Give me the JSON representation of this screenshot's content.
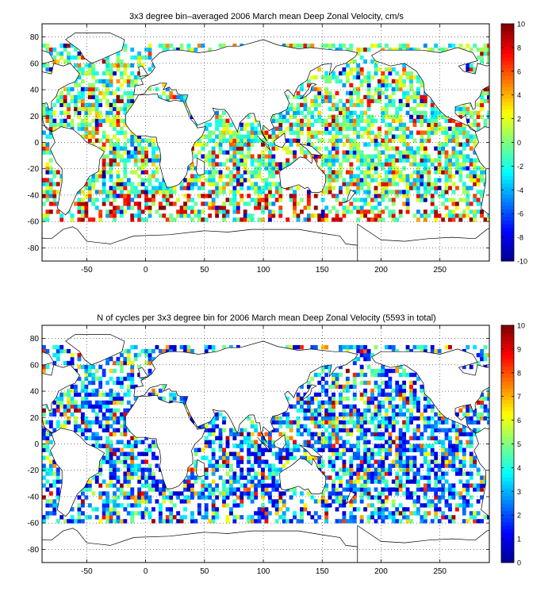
{
  "figure": {
    "panel_top_title": "3x3 degree bin–averaged 2006 March mean Deep Zonal Velocity, cm/s",
    "panel_bottom_title": "N of cycles per 3x3 degree bin for 2006 March mean Deep Zonal Velocity (5593 in total)"
  },
  "chart_data": [
    {
      "type": "heatmap",
      "title": "3x3 degree bin–averaged 2006 March mean Deep Zonal Velocity, cm/s",
      "bin_size_deg": 3,
      "xlim": [
        -88,
        292
      ],
      "ylim": [
        -90,
        90
      ],
      "x_ticks": [
        -50,
        0,
        50,
        100,
        150,
        200,
        250
      ],
      "y_ticks": [
        -80,
        -60,
        -40,
        -20,
        0,
        20,
        40,
        60,
        80
      ],
      "grid": true,
      "grid_style": "dotted",
      "colormap": "jet",
      "clim": [
        -10,
        10
      ],
      "colorbar_ticks": [
        -10,
        -8,
        -6,
        -4,
        -2,
        0,
        2,
        4,
        6,
        8,
        10
      ],
      "colorbar_position": "right",
      "units": "cm/s",
      "coverage_lat": [
        -60,
        75
      ]
    },
    {
      "type": "heatmap",
      "title": "N of cycles per 3x3 degree bin for 2006 March mean Deep Zonal Velocity (5593 in total)",
      "bin_size_deg": 3,
      "total_cycles": 5593,
      "xlim": [
        -88,
        292
      ],
      "ylim": [
        -90,
        90
      ],
      "x_ticks": [
        -50,
        0,
        50,
        100,
        150,
        200,
        250
      ],
      "y_ticks": [
        -80,
        -60,
        -40,
        -20,
        0,
        20,
        40,
        60,
        80
      ],
      "grid": true,
      "grid_style": "dotted",
      "colormap": "jet",
      "clim": [
        0,
        10
      ],
      "colorbar_ticks": [
        0,
        1,
        2,
        3,
        4,
        5,
        6,
        7,
        8,
        9,
        10
      ],
      "colorbar_position": "right",
      "coverage_lat": [
        -60,
        75
      ]
    }
  ],
  "colors": {
    "jet": [
      "#00008f",
      "#0000ff",
      "#007fff",
      "#00ffff",
      "#7fff7f",
      "#ffff00",
      "#ff7f00",
      "#ff0000",
      "#7f0000"
    ],
    "axes": "#000000",
    "background": "#ffffff"
  }
}
